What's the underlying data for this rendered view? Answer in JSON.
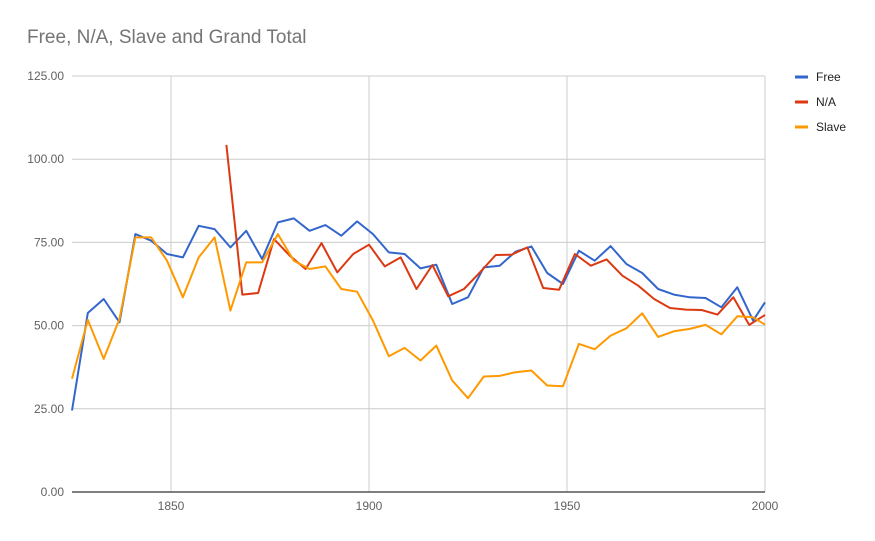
{
  "chart_data": {
    "type": "line",
    "title": "Free, N/A, Slave and Grand Total",
    "xlabel": "",
    "ylabel": "",
    "xlim": [
      1825,
      2000
    ],
    "ylim": [
      0,
      125
    ],
    "x_ticks": [
      "1850",
      "1900",
      "1950",
      "2000"
    ],
    "y_ticks": [
      "0.00",
      "25.00",
      "50.00",
      "75.00",
      "100.00",
      "125.00"
    ],
    "grid": true,
    "legend_position": "right",
    "series": [
      {
        "name": "Free",
        "color": "#3366cc",
        "points": [
          [
            1825,
            24.5
          ],
          [
            1829,
            53.8
          ],
          [
            1833,
            58
          ],
          [
            1837,
            51
          ],
          [
            1841,
            77.5
          ],
          [
            1845,
            75.5
          ],
          [
            1849,
            71.5
          ],
          [
            1853,
            70.5
          ],
          [
            1857,
            80
          ],
          [
            1861,
            79
          ],
          [
            1865,
            73.5
          ],
          [
            1869,
            78.5
          ],
          [
            1873,
            70
          ],
          [
            1877,
            81
          ],
          [
            1881,
            82.2
          ],
          [
            1885,
            78.5
          ],
          [
            1889,
            80.2
          ],
          [
            1893,
            77
          ],
          [
            1897,
            81.3
          ],
          [
            1901,
            77.5
          ],
          [
            1905,
            72
          ],
          [
            1909,
            71.5
          ],
          [
            1913,
            67.2
          ],
          [
            1917,
            68.3
          ],
          [
            1921,
            56.5
          ],
          [
            1925,
            58.5
          ],
          [
            1929,
            67.5
          ],
          [
            1933,
            68
          ],
          [
            1937,
            72.2
          ],
          [
            1941,
            73.8
          ],
          [
            1945,
            65.8
          ],
          [
            1949,
            62.5
          ],
          [
            1953,
            72.5
          ],
          [
            1957,
            69.5
          ],
          [
            1961,
            73.9
          ],
          [
            1965,
            68.5
          ],
          [
            1969,
            65.8
          ],
          [
            1973,
            61
          ],
          [
            1977,
            59.3
          ],
          [
            1981,
            58.5
          ],
          [
            1985,
            58.3
          ],
          [
            1989,
            55.5
          ],
          [
            1993,
            61.5
          ],
          [
            1997,
            51.5
          ],
          [
            2000,
            57
          ]
        ]
      },
      {
        "name": "N/A",
        "color": "#dc3912",
        "points": [
          [
            1864,
            104.3
          ],
          [
            1868,
            59.3
          ],
          [
            1872,
            59.8
          ],
          [
            1876,
            76
          ],
          [
            1880,
            71
          ],
          [
            1884,
            67
          ],
          [
            1888,
            74.8
          ],
          [
            1892,
            66
          ],
          [
            1896,
            71.5
          ],
          [
            1900,
            74.3
          ],
          [
            1904,
            67.8
          ],
          [
            1908,
            70.5
          ],
          [
            1912,
            61
          ],
          [
            1916,
            68.2
          ],
          [
            1920,
            58.8
          ],
          [
            1924,
            61
          ],
          [
            1928,
            66
          ],
          [
            1932,
            71.2
          ],
          [
            1936,
            71.3
          ],
          [
            1940,
            73.5
          ],
          [
            1944,
            61.3
          ],
          [
            1948,
            60.8
          ],
          [
            1952,
            71.5
          ],
          [
            1956,
            68
          ],
          [
            1960,
            69.9
          ],
          [
            1964,
            65
          ],
          [
            1968,
            62
          ],
          [
            1972,
            58
          ],
          [
            1976,
            55.3
          ],
          [
            1980,
            54.8
          ],
          [
            1984,
            54.7
          ],
          [
            1988,
            53.3
          ],
          [
            1992,
            58.5
          ],
          [
            1996,
            50.2
          ],
          [
            2000,
            53.2
          ]
        ]
      },
      {
        "name": "Slave",
        "color": "#ff9900",
        "points": [
          [
            1825,
            34
          ],
          [
            1829,
            51.7
          ],
          [
            1833,
            40
          ],
          [
            1837,
            52
          ],
          [
            1841,
            76.5
          ],
          [
            1845,
            76.5
          ],
          [
            1849,
            69.5
          ],
          [
            1853,
            58.5
          ],
          [
            1857,
            70.5
          ],
          [
            1861,
            76.5
          ],
          [
            1865,
            54.5
          ],
          [
            1869,
            69
          ],
          [
            1873,
            69
          ],
          [
            1877,
            77.5
          ],
          [
            1881,
            69.5
          ],
          [
            1885,
            67
          ],
          [
            1889,
            67.8
          ],
          [
            1893,
            61
          ],
          [
            1897,
            60.2
          ],
          [
            1901,
            51.5
          ],
          [
            1905,
            40.8
          ],
          [
            1909,
            43.3
          ],
          [
            1913,
            39.5
          ],
          [
            1917,
            44
          ],
          [
            1921,
            33.5
          ],
          [
            1925,
            28.2
          ],
          [
            1929,
            34.7
          ],
          [
            1933,
            34.9
          ],
          [
            1937,
            36
          ],
          [
            1941,
            36.5
          ],
          [
            1945,
            32
          ],
          [
            1949,
            31.8
          ],
          [
            1953,
            44.5
          ],
          [
            1957,
            42.9
          ],
          [
            1961,
            47
          ],
          [
            1965,
            49.2
          ],
          [
            1969,
            53.7
          ],
          [
            1973,
            46.6
          ],
          [
            1977,
            48.3
          ],
          [
            1981,
            49
          ],
          [
            1985,
            50.2
          ],
          [
            1989,
            47.4
          ],
          [
            1993,
            52.8
          ],
          [
            1997,
            52.5
          ],
          [
            2000,
            50.3
          ]
        ]
      }
    ]
  }
}
